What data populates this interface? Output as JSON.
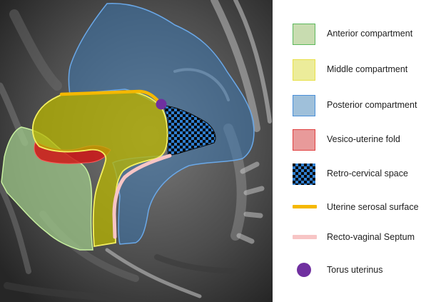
{
  "legend": {
    "items": [
      {
        "label": "Anterior compartment",
        "type": "fill",
        "fill": "#c8dcb0",
        "stroke": "#5cb85c"
      },
      {
        "label": "Middle compartment",
        "type": "fill",
        "fill": "#ecec9a",
        "stroke": "#e8e048"
      },
      {
        "label": "Posterior compartment",
        "type": "fill",
        "fill": "#9fc0da",
        "stroke": "#4a90d9"
      },
      {
        "label": "Vesico-uterine fold",
        "type": "fill",
        "fill": "#e89a9a",
        "stroke": "#e04040"
      },
      {
        "label": "Retro-cervical space",
        "type": "checker",
        "fill": "#2f7fd0",
        "stroke": "#0a0a0a"
      },
      {
        "label": "Uterine serosal surface",
        "type": "line",
        "fill": "#f5b800"
      },
      {
        "label": "Recto-vaginal Septum",
        "type": "line",
        "fill": "#f7c5c5"
      },
      {
        "label": "Torus uterinus",
        "type": "dot",
        "fill": "#7030a0"
      }
    ]
  },
  "colors": {
    "anterior_fill": "#9fc88a",
    "anterior_stroke": "#c8f0a0",
    "middle_fill": "#b8b600",
    "middle_stroke": "#f5f060",
    "posterior_fill": "#3a7ab8",
    "posterior_stroke": "#6aa8e8",
    "fold_fill": "#d01818",
    "serosal": "#f5b800",
    "septum": "#f7c5c5",
    "torus": "#7030a0",
    "checker_dark": "#0a0a0a",
    "checker_light": "#2f7fd0"
  }
}
